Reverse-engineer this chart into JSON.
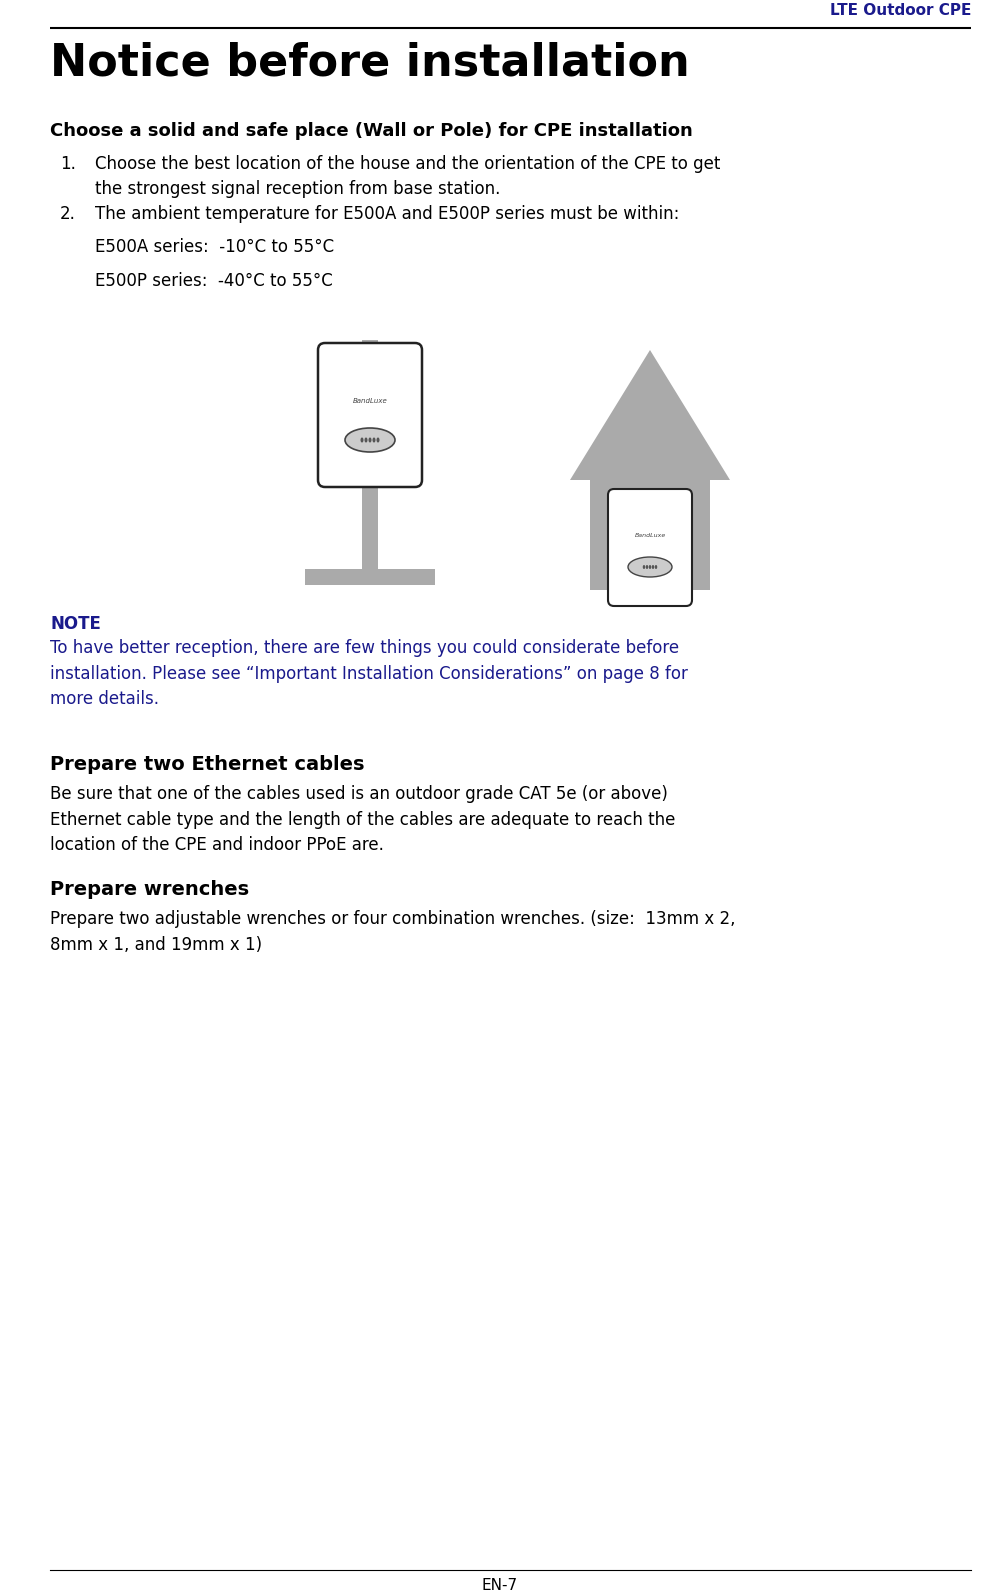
{
  "header_text": "LTE Outdoor CPE",
  "header_color": "#1a1a8c",
  "title": "Notice before installation",
  "title_color": "#000000",
  "section1_heading": "Choose a solid and safe place (Wall or Pole) for CPE installation",
  "item1": "Choose the best location of the house and the orientation of the CPE to get\nthe strongest signal reception from base station.",
  "item2_intro": "The ambient temperature for E500A and E500P series must be within:",
  "item2_line1": "E500A series:  -10°C to 55°C",
  "item2_line2": "E500P series:  -40°C to 55°C",
  "note_label": "NOTE",
  "note_color": "#1a1a8c",
  "note_text": "To have better reception, there are few things you could considerate before\ninstallation. Please see “Important Installation Considerations” on page 8 for\nmore details.",
  "section2_heading": "Prepare two Ethernet cables",
  "section2_text": "Be sure that one of the cables used is an outdoor grade CAT 5e (or above)\nEthernet cable type and the length of the cables are adequate to reach the\nlocation of the CPE and indoor PPoE are.",
  "section3_heading": "Prepare wrenches",
  "section3_text": "Prepare two adjustable wrenches or four combination wrenches. (size:  13mm x 2,\n8mm x 1, and 19mm x 1)",
  "footer_text": "EN-7",
  "bg_color": "#ffffff",
  "text_color": "#000000",
  "gray_device": "#aaaaaa",
  "gray_house": "#999999"
}
